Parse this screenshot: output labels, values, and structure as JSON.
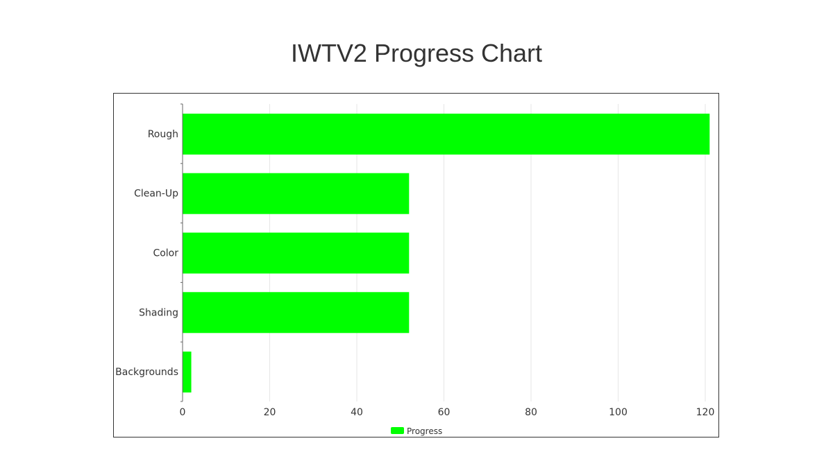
{
  "chart_data": {
    "type": "bar",
    "orientation": "horizontal",
    "title": "IWTV2 Progress Chart",
    "categories": [
      "Rough",
      "Clean-Up",
      "Color",
      "Shading",
      "Backgrounds"
    ],
    "series": [
      {
        "name": "Progress",
        "values": [
          121,
          52,
          52,
          52,
          2
        ],
        "color": "#00ff00"
      }
    ],
    "xlim": [
      0,
      120
    ],
    "xticks": [
      "0",
      "20",
      "40",
      "60",
      "80",
      "100",
      "120"
    ],
    "grid": true,
    "legend": "bottom-center"
  }
}
